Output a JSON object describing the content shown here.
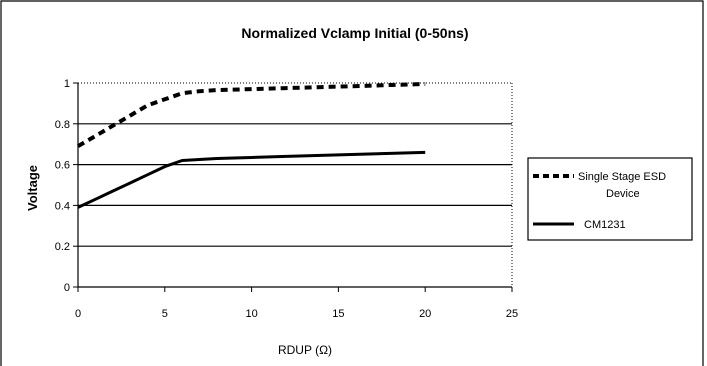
{
  "chart_data": {
    "type": "line",
    "title": "Normalized Vclamp Initial  (0-50ns)",
    "xlabel": "RDUP (Ω)",
    "ylabel": "Voltage",
    "xlim": [
      0,
      25
    ],
    "ylim": [
      0,
      1
    ],
    "x_ticks": [
      "0",
      "5",
      "10",
      "15",
      "20",
      "25"
    ],
    "y_ticks": [
      "0",
      "0.2",
      "0.4",
      "0.6",
      "0.8",
      "1"
    ],
    "grid": "horizontal",
    "legend_position": "right",
    "series": [
      {
        "name": "Single Stage ESD Device",
        "style": "dashed",
        "color": "#000000",
        "x": [
          0,
          1,
          2,
          3,
          4,
          5,
          6,
          7,
          8,
          10,
          12,
          14,
          16,
          18,
          20
        ],
        "y": [
          0.69,
          0.74,
          0.79,
          0.84,
          0.89,
          0.92,
          0.95,
          0.96,
          0.965,
          0.97,
          0.975,
          0.98,
          0.985,
          0.99,
          0.995
        ]
      },
      {
        "name": "CM1231",
        "style": "solid",
        "color": "#000000",
        "x": [
          0,
          1,
          2,
          3,
          4,
          5,
          6,
          7,
          8,
          10,
          12,
          14,
          16,
          18,
          20
        ],
        "y": [
          0.39,
          0.43,
          0.47,
          0.51,
          0.55,
          0.59,
          0.62,
          0.625,
          0.63,
          0.635,
          0.64,
          0.645,
          0.65,
          0.655,
          0.66
        ]
      }
    ]
  }
}
